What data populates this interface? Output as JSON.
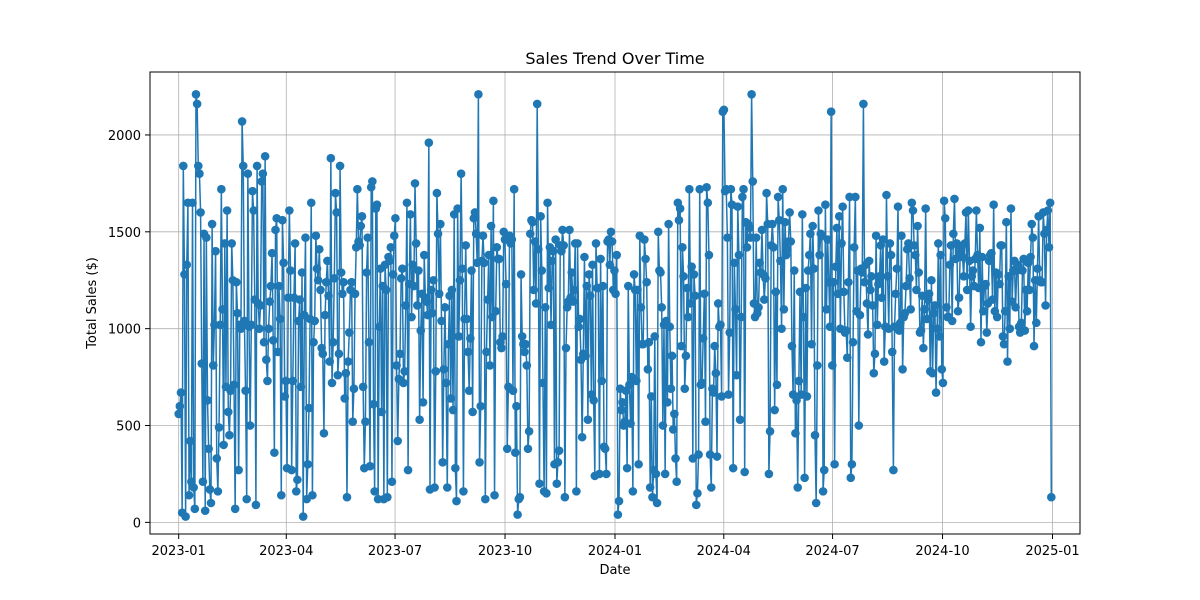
{
  "chart_data": {
    "type": "line",
    "title": "Sales Trend Over Time",
    "xlabel": "Date",
    "ylabel": "Total Sales ($)",
    "marker": "circle",
    "grid": true,
    "legend": "none",
    "color": "#1f77b4",
    "x_range": [
      "2023-01-01",
      "2024-12-31"
    ],
    "xlim": [
      "2022-12-08",
      "2025-01-24"
    ],
    "ylim": [
      -60,
      2325
    ],
    "x_ticks": [
      "2023-01",
      "2023-04",
      "2023-07",
      "2023-10",
      "2024-01",
      "2024-04",
      "2024-07",
      "2024-10",
      "2025-01"
    ],
    "y_ticks": [
      0,
      500,
      1000,
      1500,
      2000
    ],
    "series": [
      {
        "values": [
          560,
          600,
          670,
          50,
          1840,
          1280,
          30,
          1330,
          1650,
          140,
          420,
          210,
          1650,
          180,
          70,
          2210,
          2160,
          1840,
          1800,
          1600,
          820,
          210,
          1490,
          60,
          1470,
          630,
          380,
          170,
          100,
          1540,
          810,
          1020,
          1400,
          330,
          160,
          490,
          1020,
          1720,
          1100,
          400,
          1440,
          700,
          1610,
          570,
          450,
          680,
          1440,
          1250,
          710,
          70,
          1240,
          1080,
          270,
          1020,
          1000,
          2070,
          1840,
          1040,
          680,
          120,
          1800,
          1010,
          500,
          1020,
          1710,
          1610,
          1150,
          90,
          1840,
          1130,
          1000,
          1120,
          1760,
          1800,
          930,
          1890,
          840,
          730,
          1000,
          1140,
          1220,
          1390,
          940,
          360,
          1510,
          1570,
          880,
          1220,
          1050,
          140,
          1560,
          1340,
          650,
          730,
          280,
          1160,
          1610,
          1300,
          270,
          730,
          1160,
          1440,
          160,
          220,
          1040,
          1150,
          700,
          1290,
          30,
          1070,
          1470,
          120,
          300,
          590,
          1050,
          1650,
          140,
          930,
          1040,
          1480,
          1310,
          1250,
          1410,
          1200,
          900,
          870,
          460,
          1070,
          1240,
          1350,
          1170,
          830,
          1880,
          720,
          930,
          1260,
          1700,
          1600,
          760,
          870,
          1840,
          1290,
          1180,
          1240,
          640,
          770,
          130,
          830,
          980,
          1200,
          1240,
          520,
          690,
          1180,
          1420,
          1720,
          1450,
          1430,
          1530,
          1580,
          700,
          280,
          520,
          1290,
          1470,
          930,
          290,
          1730,
          1760,
          610,
          160,
          1620,
          1640,
          120,
          1010,
          1310,
          570,
          1220,
          120,
          1330,
          1200,
          130,
          1370,
          1350,
          1420,
          210,
          1280,
          1480,
          1570,
          810,
          420,
          740,
          870,
          1260,
          1310,
          720,
          780,
          1120,
          1650,
          270,
          1230,
          1590,
          1060,
          1330,
          1220,
          1750,
          1440,
          1120,
          1300,
          530,
          990,
          1180,
          620,
          1380,
          1160,
          1140,
          1070,
          1960,
          170,
          1200,
          1080,
          1250,
          180,
          780,
          1700,
          1490,
          1180,
          1540,
          1040,
          310,
          790,
          1110,
          720,
          180,
          920,
          1170,
          640,
          1200,
          580,
          1590,
          280,
          110,
          1620,
          960,
          1250,
          1800,
          1310,
          160,
          1050,
          1430,
          1050,
          880,
          680,
          950,
          1300,
          570,
          1570,
          1600,
          1490,
          1340,
          2210,
          310,
          600,
          1350,
          1480,
          1340,
          120,
          880,
          1150,
          1380,
          810,
          1530,
          1060,
          1660,
          140,
          1090,
          1420,
          1360,
          1360,
          930,
          900,
          960,
          1500,
          1460,
          1230,
          380,
          700,
          1480,
          1440,
          1460,
          680,
          1720,
          360,
          600,
          40,
          120,
          130,
          1280,
          960,
          920,
          880,
          920,
          810,
          380,
          470,
          1490,
          1560,
          1550,
          1200,
          1450,
          1130,
          2160,
          1410,
          200,
          1580,
          1300,
          720,
          160,
          1110,
          150,
          1650,
          1210,
          1420,
          1020,
          1350,
          1400,
          300,
          1460,
          200,
          310,
          370,
          1430,
          1400,
          1510,
          1430,
          130,
          900,
          1110,
          1140,
          1510,
          1160,
          1290,
          1140,
          1200,
          1440,
          160,
          1440,
          1010,
          1050,
          840,
          440,
          870,
          1370,
          860,
          1220,
          530,
          1280,
          1170,
          660,
          1330,
          630,
          240,
          1440,
          1210,
          1210,
          250,
          1360,
          730,
          1220,
          390,
          380,
          250,
          1450,
          1460,
          1330,
          1500,
          1450,
          1200,
          1300,
          1180,
          1380,
          40,
          110,
          690,
          580,
          620,
          500,
          520,
          680,
          280,
          1220,
          710,
          510,
          750,
          160,
          1280,
          1200,
          730,
          1200,
          300,
          1480,
          1110,
          920,
          920,
          1460,
          1360,
          1240,
          790,
          930,
          180,
          650,
          130,
          270,
          960,
          250,
          100,
          1500,
          1300,
          1290,
          1110,
          500,
          1020,
          250,
          1040,
          620,
          1540,
          1010,
          690,
          860,
          480,
          560,
          330,
          210,
          1650,
          1560,
          1620,
          910,
          1420,
          1270,
          690,
          860,
          1210,
          1060,
          1720,
          1130,
          1320,
          330,
          1280,
          1170,
          90,
          150,
          350,
          1720,
          710,
          720,
          950,
          1180,
          520,
          1730,
          1650,
          1380,
          350,
          180,
          690,
          670,
          910,
          770,
          340,
          1130,
          1010,
          1020,
          650,
          2120,
          2130,
          1710,
          1720,
          1470,
          660,
          980,
          1720,
          1640,
          280,
          1340,
          1100,
          760,
          1630,
          1380,
          530,
          1060,
          1680,
          1720,
          260,
          1550,
          1420,
          1540,
          1520,
          1470,
          2210,
          1760,
          1130,
          1060,
          1470,
          1080,
          1110,
          1340,
          1290,
          1510,
          1280,
          1150,
          1260,
          1700,
          1540,
          250,
          470,
          1430,
          1540,
          1420,
          580,
          1190,
          710,
          1680,
          1560,
          1350,
          1000,
          1720,
          1100,
          1550,
          1380,
          1410,
          1450,
          1600,
          1450,
          910,
          660,
          1300,
          460,
          630,
          180,
          730,
          1190,
          660,
          1590,
          1060,
          230,
          1210,
          650,
          1300,
          1380,
          1490,
          920,
          1530,
          1310,
          450,
          100,
          810,
          1610,
          1380,
          1490,
          1480,
          160,
          270,
          1640,
          1100,
          1460,
          1240,
          1010,
          2120,
          810,
          1240,
          300,
          1320,
          1520,
          1180,
          1580,
          1000,
          1440,
          1630,
          1190,
          980,
          990,
          850,
          1240,
          1680,
          230,
          300,
          930,
          1420,
          1680,
          1090,
          1300,
          500,
          1070,
          1310,
          1290,
          2160,
          1240,
          1330,
          1130,
          970,
          1350,
          1200,
          1270,
          1120,
          770,
          870,
          1480,
          1020,
          1230,
          1270,
          1430,
          1160,
          1460,
          830,
          1010,
          1690,
          1270,
          1000,
          1440,
          1380,
          880,
          270,
          1010,
          1180,
          1310,
          1630,
          990,
          1030,
          1480,
          790,
          1060,
          1080,
          1220,
          1410,
          1440,
          1260,
          1100,
          1650,
          1610,
          1430,
          1380,
          1200,
          1530,
          1290,
          980,
          990,
          1170,
          900,
          1100,
          1620,
          1050,
          1150,
          1180,
          780,
          1250,
          770,
          1080,
          1120,
          670,
          1000,
          1440,
          960,
          1380,
          790,
          720,
          1660,
          1570,
          1110,
          1060,
          1060,
          1330,
          1430,
          1040,
          1490,
          1670,
          1360,
          1440,
          1090,
          1160,
          1390,
          1420,
          1370,
          1270,
          1440,
          1600,
          1200,
          1610,
          1350,
          1010,
          1270,
          1300,
          1220,
          1360,
          1610,
          1380,
          1210,
          1520,
          930,
          1370,
          1090,
          1220,
          1230,
          980,
          1130,
          1350,
          1380,
          1390,
          1150,
          1640,
          1090,
          1290,
          1060,
          1280,
          1230,
          1430,
          1430,
          960,
          920,
          1090,
          1550,
          830,
          1270,
          1000,
          1620,
          1140,
          1300,
          1350,
          1110,
          1300,
          1330,
          1010,
          980,
          1030,
          1300,
          1360,
          990,
          1200,
          1090,
          1340,
          1200,
          1370,
          1540,
          1470,
          910,
          1250,
          1030,
          1310,
          1580,
          1250,
          1240,
          1240,
          1600,
          1490,
          1120,
          1510,
          1610,
          1420,
          1650,
          130
        ]
      }
    ]
  }
}
